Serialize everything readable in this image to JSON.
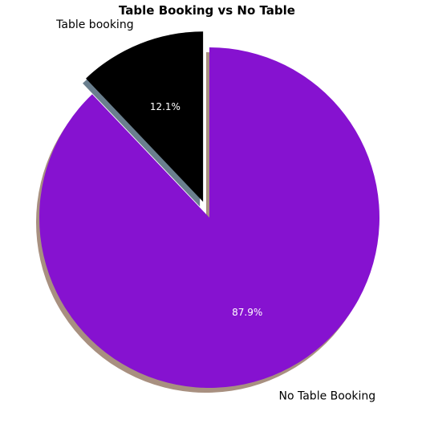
{
  "chart_data": {
    "type": "pie",
    "title": "Table Booking vs No Table",
    "categories": [
      "Table booking",
      "No Table Booking"
    ],
    "values": [
      12.1,
      87.9
    ],
    "percent_labels": [
      "12.1%",
      "87.9%"
    ],
    "colors": [
      "#000000",
      "#8612d0"
    ],
    "explode": [
      0.1,
      0
    ],
    "shadow": true,
    "start_angle": 90,
    "direction": "counterclockwise"
  }
}
